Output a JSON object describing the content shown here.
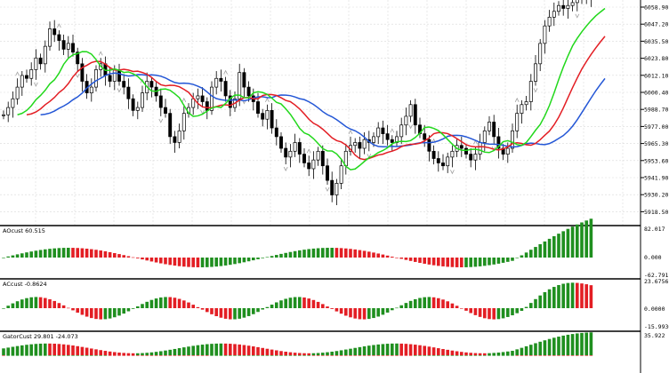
{
  "colors": {
    "background": "#ffffff",
    "grid": "#d9d9d9",
    "candle": "#000000",
    "jaw": "#2457d6",
    "teeth": "#e31e24",
    "lips": "#22d81c",
    "bar_up": "#1f8f1f",
    "bar_down": "#e31e24",
    "fractal": "#a0a0a0"
  },
  "main_chart": {
    "price_labels": [
      "6058.90",
      "6047.20",
      "6035.50",
      "6023.80",
      "6012.10",
      "6000.40",
      "5988.70",
      "5977.00",
      "5965.30",
      "5953.60",
      "5941.90",
      "5930.20",
      "5918.50"
    ],
    "indicators": [
      "jaw",
      "teeth",
      "lips",
      "fractals"
    ]
  },
  "panes": [
    {
      "title": "AOcust 60.515",
      "scale_labels": [
        "82.017",
        "0.000",
        "-62.791"
      ]
    },
    {
      "title": "ACcust -0.8624",
      "scale_labels": [
        "23.6756",
        "0.0000",
        "-15.9930"
      ]
    },
    {
      "title": "GatorCust 29.801 -24.073",
      "scale_labels": [
        "35.922"
      ]
    }
  ]
}
